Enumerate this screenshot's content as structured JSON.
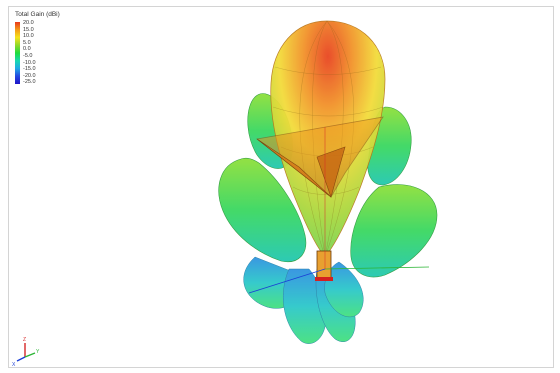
{
  "legend": {
    "title": "Total Gain (dBi)",
    "ticks": [
      "20.0",
      "15.0",
      "10.0",
      "5.0",
      "0.0",
      "-5.0",
      "-10.0",
      "-15.0",
      "-20.0",
      "-25.0"
    ],
    "gradient_colors": [
      "#e8391c",
      "#f39a17",
      "#f6e31c",
      "#8fd82a",
      "#1fdc3c",
      "#17d9b0",
      "#1fa8e6",
      "#2347e0",
      "#1f14c8"
    ]
  },
  "axes": {
    "x_label": "X",
    "y_label": "Y",
    "z_label": "Z",
    "colors": {
      "x": "#1a3fd6",
      "y": "#2bb535",
      "z": "#d62828"
    }
  },
  "pattern": {
    "main_lobe_color": "#f08020",
    "side_lobe_color": "#4ad65a",
    "back_lobe_color": "#2ac8c8",
    "horn_color": "#e89a1a"
  }
}
